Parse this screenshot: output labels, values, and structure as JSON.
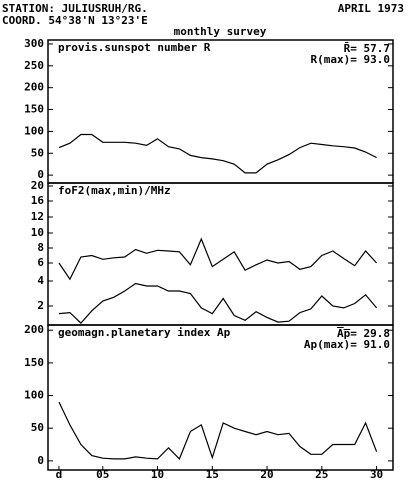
{
  "header": {
    "station": "STATION: JULIUSRUH/RG.",
    "date": "APRIL 1973",
    "coord": "COORD. 54°38'N 13°23'E",
    "subtitle": "monthly survey"
  },
  "chart_data": [
    {
      "type": "line",
      "title": "provis.sunspot number R",
      "annotations": [
        "R̄= 57.7",
        "R(max)= 93.0"
      ],
      "x": [
        1,
        2,
        3,
        4,
        5,
        6,
        7,
        8,
        9,
        10,
        11,
        12,
        13,
        14,
        15,
        16,
        17,
        18,
        19,
        20,
        21,
        22,
        23,
        24,
        25,
        26,
        27,
        28,
        29,
        30
      ],
      "series": [
        {
          "color": "#000000",
          "values": [
            63,
            73,
            93,
            93,
            75,
            75,
            75,
            73,
            68,
            83,
            65,
            60,
            45,
            40,
            37,
            33,
            25,
            5,
            5,
            25,
            35,
            47,
            63,
            73,
            70,
            67,
            65,
            62,
            53,
            40
          ]
        }
      ],
      "xlim": [
        0,
        31.5
      ],
      "ylim": [
        -18,
        309
      ],
      "yticks": [
        0,
        50,
        100,
        150,
        200,
        250,
        300
      ]
    },
    {
      "type": "line",
      "title": "foF2(max,min)/MHz",
      "x": [
        1,
        2,
        3,
        4,
        5,
        6,
        7,
        8,
        9,
        10,
        11,
        12,
        13,
        14,
        15,
        16,
        17,
        18,
        19,
        20,
        21,
        22,
        23,
        24,
        25,
        26,
        27,
        28,
        29,
        30
      ],
      "series": [
        {
          "color": "#000000",
          "values": [
            6,
            4.2,
            6.8,
            7,
            6.5,
            6.7,
            6.8,
            7.8,
            7.3,
            7.7,
            7.6,
            7.5,
            5.8,
            9.2,
            5.6,
            6.5,
            7.5,
            5.2,
            5.8,
            6.4,
            6,
            6.2,
            5.3,
            5.6,
            7,
            7.6,
            6.6,
            5.7,
            7.6,
            6
          ]
        },
        {
          "color": "#000000",
          "values": [
            1.2,
            1.3,
            0.2,
            1.5,
            2.4,
            2.7,
            3.2,
            3.8,
            3.6,
            3.6,
            3.2,
            3.2,
            3,
            1.8,
            1.2,
            2.6,
            1,
            0.5,
            1.4,
            0.8,
            0.3,
            0.4,
            1.3,
            1.7,
            2.8,
            2,
            1.8,
            2.2,
            2.9,
            1.8
          ]
        }
      ],
      "xlim": [
        0,
        31.5
      ],
      "ylim": [
        0,
        21
      ],
      "yticks": [
        20,
        16,
        12,
        10,
        8,
        6,
        4,
        2
      ]
    },
    {
      "type": "line",
      "title": "geomagn.planetary index Ap",
      "annotations": [
        "A̅p̅= 29.8",
        "Ap(max)= 91.0"
      ],
      "x": [
        1,
        2,
        3,
        4,
        5,
        6,
        7,
        8,
        9,
        10,
        11,
        12,
        13,
        14,
        15,
        16,
        17,
        18,
        19,
        20,
        21,
        22,
        23,
        24,
        25,
        26,
        27,
        28,
        29,
        30
      ],
      "series": [
        {
          "color": "#000000",
          "values": [
            90,
            55,
            25,
            8,
            4,
            3,
            3,
            6,
            4,
            3,
            20,
            3,
            45,
            55,
            5,
            58,
            50,
            45,
            40,
            45,
            40,
            42,
            22,
            10,
            10,
            25,
            25,
            25,
            58,
            14
          ]
        }
      ],
      "xlim": [
        0,
        31.5
      ],
      "ylim": [
        -14,
        208
      ],
      "yticks": [
        0,
        50,
        100,
        150,
        200
      ],
      "xticks": [
        {
          "value": 1,
          "label": "d"
        },
        {
          "value": 5,
          "label": "05"
        },
        10,
        15,
        20,
        25,
        30
      ]
    }
  ]
}
